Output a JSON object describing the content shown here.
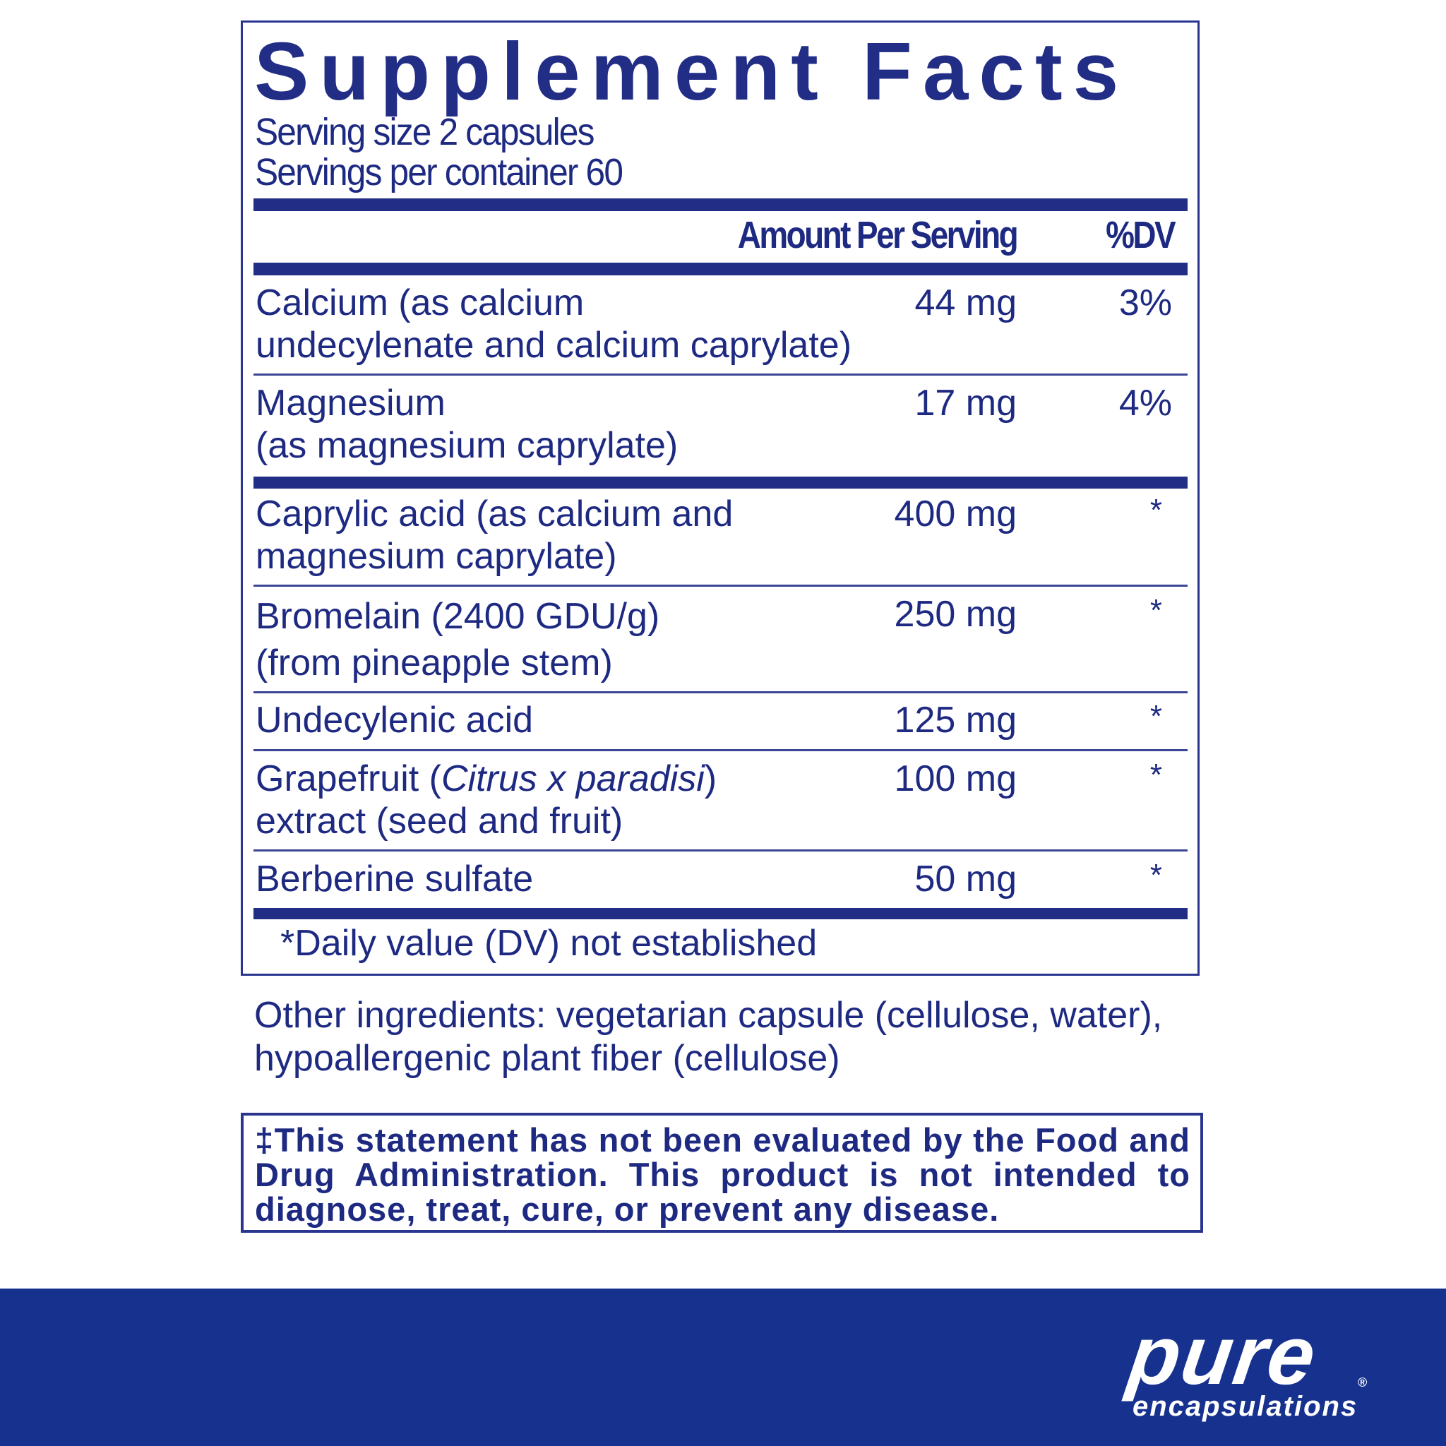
{
  "title": "Supplement Facts",
  "serving_size": "Serving size  2 capsules",
  "servings_per_container": "Servings per container  60",
  "header": {
    "amount": "Amount Per Serving",
    "dv": "%DV"
  },
  "rows": [
    {
      "name_lines": [
        "Calcium (as calcium",
        "undecylenate and calcium caprylate)"
      ],
      "amount": "44 mg",
      "dv": "3%"
    },
    {
      "name_lines": [
        "Magnesium",
        "(as magnesium caprylate)"
      ],
      "amount": "17 mg",
      "dv": "4%"
    },
    {
      "name_lines": [
        "Caprylic acid (as calcium and",
        "magnesium caprylate)"
      ],
      "amount": "400 mg",
      "dv": "*"
    },
    {
      "name_lines": [
        "Bromelain (2400 GDU/g)",
        "(from pineapple stem)"
      ],
      "amount": "250 mg",
      "dv": "*"
    },
    {
      "name_lines": [
        "Undecylenic acid"
      ],
      "amount": "125 mg",
      "dv": "*"
    },
    {
      "name_prefix": "Grapefruit (",
      "name_italic": "Citrus x paradisi",
      "name_suffix": ")",
      "name_line2": "extract (seed and fruit)",
      "amount": "100 mg",
      "dv": "*"
    },
    {
      "name_lines": [
        "Berberine sulfate"
      ],
      "amount": "50 mg",
      "dv": "*"
    }
  ],
  "footnote": "*Daily value (DV) not established",
  "other_ingredients": [
    "Other ingredients: vegetarian capsule (cellulose, water),",
    "hypoallergenic plant fiber (cellulose)"
  ],
  "disclaimer": "‡This statement has not been evaluated by the Food and Drug Administration. This product is not intended to diagnose, treat, cure, or prevent any disease.",
  "brand": {
    "name": "pure",
    "tagline": "encapsulations",
    "mark": "®"
  },
  "colors": {
    "text": "#1e2a82",
    "band": "#17318f"
  }
}
